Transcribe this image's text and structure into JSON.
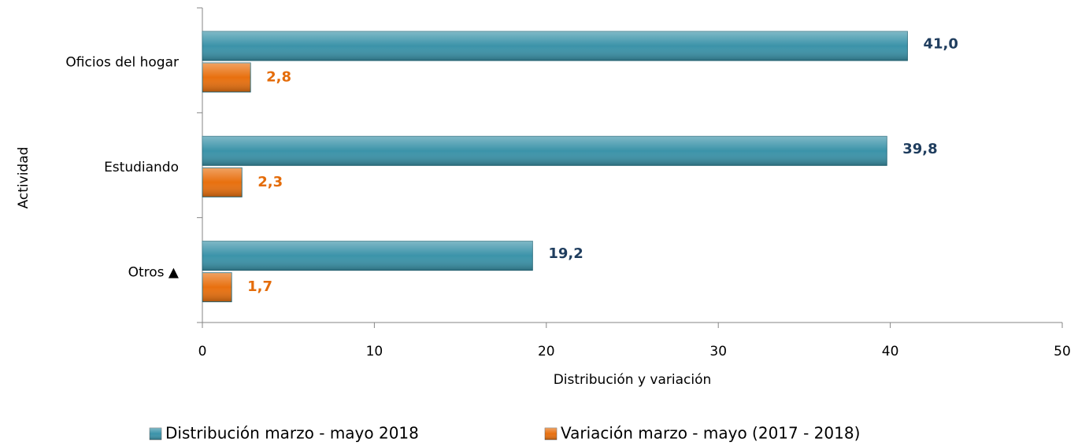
{
  "chart_data": {
    "type": "barh",
    "xlabel": "Distribución y variación",
    "ylabel": "Actividad",
    "categories": [
      "Oficios del hogar",
      "Estudiando",
      "Otros ▲"
    ],
    "series": [
      {
        "name": "Distribución marzo - mayo 2018",
        "color": "#3b93a9",
        "values": [
          41.0,
          39.8,
          19.2
        ],
        "value_labels": [
          "41,0",
          "39,8",
          "19,2"
        ]
      },
      {
        "name": "Variación marzo - mayo (2017 - 2018)",
        "color": "#e8700f",
        "values": [
          2.8,
          2.3,
          1.7
        ],
        "value_labels": [
          "2,8",
          "2,3",
          "1,7"
        ]
      }
    ],
    "xlim": [
      0,
      50
    ],
    "xticks": [
      0,
      10,
      20,
      30,
      40,
      50
    ],
    "legend": "bottom"
  }
}
